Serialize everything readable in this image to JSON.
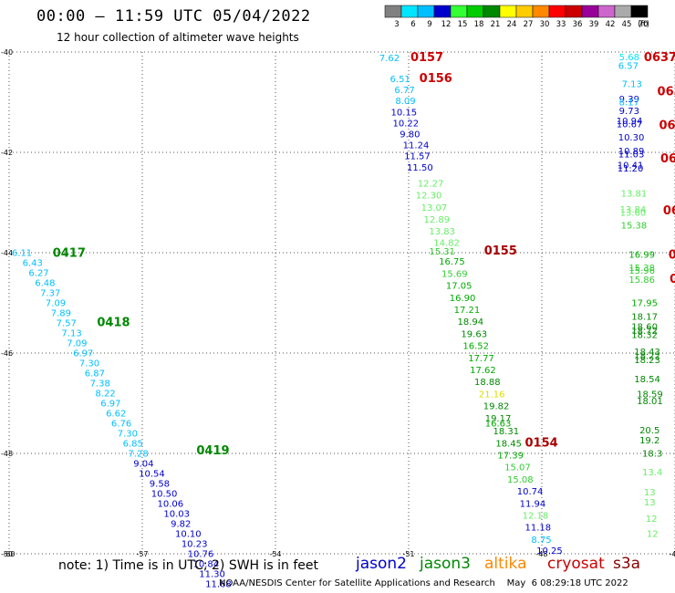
{
  "title": "00:00 – 11:59 UTC 05/04/2022",
  "subtitle": "12 hour collection of altimeter wave heights",
  "note": "note:  1) Time is in UTC;  2) SWH is in feet",
  "credit": "NOAA/NESDIS Center for Satellite Applications and Research    May  6 08:29:18 UTC 2022",
  "colorbar": {
    "unit": "(ft)",
    "bins": [
      {
        "label": "3",
        "color": "#808080"
      },
      {
        "label": "6",
        "color": "#00e5ff"
      },
      {
        "label": "9",
        "color": "#00bfff"
      },
      {
        "label": "12",
        "color": "#0000cd"
      },
      {
        "label": "15",
        "color": "#33ff33"
      },
      {
        "label": "18",
        "color": "#00cc00"
      },
      {
        "label": "21",
        "color": "#008800"
      },
      {
        "label": "24",
        "color": "#ffff00"
      },
      {
        "label": "27",
        "color": "#ffcc00"
      },
      {
        "label": "30",
        "color": "#ff8800"
      },
      {
        "label": "33",
        "color": "#ff0000"
      },
      {
        "label": "36",
        "color": "#cc0000"
      },
      {
        "label": "39",
        "color": "#990099"
      },
      {
        "label": "42",
        "color": "#cc66cc"
      },
      {
        "label": "45",
        "color": "#aaaaaa"
      },
      {
        "label": "70",
        "color": "#000000"
      }
    ]
  },
  "satellites": [
    {
      "name": "jason2",
      "color": "#0000cc"
    },
    {
      "name": "jason3",
      "color": "#008800"
    },
    {
      "name": "altika",
      "color": "#ff8800"
    },
    {
      "name": "cryosat",
      "color": "#cc0000"
    },
    {
      "name": "s3a",
      "color": "#880000"
    }
  ],
  "chart_data": {
    "type": "scatter",
    "xlim": [
      -60,
      -45
    ],
    "ylim": [
      -50,
      -40
    ],
    "xticks": [
      "-60",
      "-57",
      "-54",
      "-51",
      "-48",
      "-45"
    ],
    "yticks": [
      "-40",
      "-42",
      "-44",
      "-46",
      "-48",
      "-50"
    ],
    "grid": true,
    "time_labels": [
      {
        "text": "0157",
        "x": -50.96,
        "y": -40.18,
        "color": "#cc0000"
      },
      {
        "text": "0156",
        "x": -50.76,
        "y": -40.6,
        "color": "#cc0000"
      },
      {
        "text": "0155",
        "x": -49.3,
        "y": -44.04,
        "color": "#aa0000"
      },
      {
        "text": "0154",
        "x": -48.38,
        "y": -47.86,
        "color": "#aa0000"
      },
      {
        "text": "0417",
        "x": -59.02,
        "y": -44.08,
        "color": "#008800"
      },
      {
        "text": "0418",
        "x": -58.02,
        "y": -45.46,
        "color": "#008800"
      },
      {
        "text": "0419",
        "x": -55.78,
        "y": -48.02,
        "color": "#008800"
      },
      {
        "text": "0637",
        "x": -45.7,
        "y": -40.18,
        "color": "#cc0000"
      },
      {
        "text": "063",
        "x": -45.4,
        "y": -40.86,
        "color": "#cc0000"
      },
      {
        "text": "063",
        "x": -45.36,
        "y": -41.54,
        "color": "#cc0000"
      },
      {
        "text": "06",
        "x": -45.33,
        "y": -42.2,
        "color": "#cc0000"
      },
      {
        "text": "06",
        "x": -45.27,
        "y": -43.24,
        "color": "#cc0000"
      },
      {
        "text": "0",
        "x": -45.15,
        "y": -44.12,
        "color": "#cc0000"
      },
      {
        "text": "0",
        "x": -45.12,
        "y": -44.6,
        "color": "#cc0000"
      }
    ],
    "series": [
      {
        "satellite": "jason2",
        "points": [
          {
            "x": -51.66,
            "y": -40.18,
            "v": "7.62",
            "c": "#00bfff"
          },
          {
            "x": -51.42,
            "y": -40.6,
            "v": "6.51",
            "c": "#00bfff"
          },
          {
            "x": -51.32,
            "y": -40.82,
            "v": "6.77",
            "c": "#00bfff"
          },
          {
            "x": -51.3,
            "y": -41.04,
            "v": "8.09",
            "c": "#00bfff"
          },
          {
            "x": -51.4,
            "y": -41.26,
            "v": "10.15",
            "c": "#0000cd"
          },
          {
            "x": -51.36,
            "y": -41.48,
            "v": "10.22",
            "c": "#0000cd"
          },
          {
            "x": -51.2,
            "y": -41.7,
            "v": "9.80",
            "c": "#0000cd"
          },
          {
            "x": -51.13,
            "y": -41.92,
            "v": "11.24",
            "c": "#0000cd"
          },
          {
            "x": -51.1,
            "y": -42.14,
            "v": "11.57",
            "c": "#0000cd"
          },
          {
            "x": -51.04,
            "y": -42.36,
            "v": "11.50",
            "c": "#0000cd"
          },
          {
            "x": -50.8,
            "y": -42.68,
            "v": "12.27",
            "c": "#66ee66"
          },
          {
            "x": -50.84,
            "y": -42.92,
            "v": "12.30",
            "c": "#66ee66"
          },
          {
            "x": -50.72,
            "y": -43.16,
            "v": "13.07",
            "c": "#66ee66"
          },
          {
            "x": -50.66,
            "y": -43.4,
            "v": "12.89",
            "c": "#66ee66"
          },
          {
            "x": -50.54,
            "y": -43.64,
            "v": "13.83",
            "c": "#66ee66"
          },
          {
            "x": -50.44,
            "y": -43.86,
            "v": "14.82",
            "c": "#66ee66"
          },
          {
            "x": -50.54,
            "y": -44.04,
            "v": "15.31",
            "c": "#33cc33"
          },
          {
            "x": -50.32,
            "y": -44.24,
            "v": "16.75",
            "c": "#00aa00"
          },
          {
            "x": -50.26,
            "y": -44.48,
            "v": "15.69",
            "c": "#33cc33"
          },
          {
            "x": -50.16,
            "y": -44.72,
            "v": "17.05",
            "c": "#00aa00"
          },
          {
            "x": -50.08,
            "y": -44.96,
            "v": "16.90",
            "c": "#00aa00"
          },
          {
            "x": -49.98,
            "y": -45.2,
            "v": "17.21",
            "c": "#00aa00"
          },
          {
            "x": -49.9,
            "y": -45.44,
            "v": "18.94",
            "c": "#008800"
          },
          {
            "x": -49.82,
            "y": -45.68,
            "v": "19.63",
            "c": "#008800"
          },
          {
            "x": -49.78,
            "y": -45.92,
            "v": "16.52",
            "c": "#00aa00"
          },
          {
            "x": -49.66,
            "y": -46.16,
            "v": "17.77",
            "c": "#00aa00"
          },
          {
            "x": -49.62,
            "y": -46.4,
            "v": "17.62",
            "c": "#00aa00"
          },
          {
            "x": -49.52,
            "y": -46.64,
            "v": "18.88",
            "c": "#008800"
          },
          {
            "x": -49.42,
            "y": -46.88,
            "v": "21.16",
            "c": "#dddd00"
          },
          {
            "x": -49.32,
            "y": -47.12,
            "v": "19.82",
            "c": "#008800"
          },
          {
            "x": -49.28,
            "y": -47.36,
            "v": "19.17",
            "c": "#008800"
          },
          {
            "x": -49.28,
            "y": -47.46,
            "v": "16.63",
            "c": "#00aa00"
          },
          {
            "x": -49.1,
            "y": -47.62,
            "v": "18.31",
            "c": "#008800"
          },
          {
            "x": -49.04,
            "y": -47.86,
            "v": "18.45",
            "c": "#008800"
          },
          {
            "x": -49.0,
            "y": -48.1,
            "v": "17.39",
            "c": "#00aa00"
          },
          {
            "x": -48.84,
            "y": -48.34,
            "v": "15.07",
            "c": "#33cc33"
          },
          {
            "x": -48.78,
            "y": -48.58,
            "v": "15.08",
            "c": "#33cc33"
          },
          {
            "x": -48.56,
            "y": -48.82,
            "v": "10.74",
            "c": "#0000cd"
          },
          {
            "x": -48.5,
            "y": -49.06,
            "v": "11.94",
            "c": "#0000cd"
          },
          {
            "x": -48.44,
            "y": -49.3,
            "v": "12.18",
            "c": "#66ee66"
          },
          {
            "x": -48.38,
            "y": -49.54,
            "v": "11.18",
            "c": "#0000cd"
          },
          {
            "x": -48.24,
            "y": -49.78,
            "v": "8.75",
            "c": "#00bfff"
          },
          {
            "x": -48.12,
            "y": -50.0,
            "v": "10.25",
            "c": "#0000cd"
          }
        ]
      },
      {
        "satellite": "jason3",
        "points": [
          {
            "x": -59.94,
            "y": -44.06,
            "v": "6.11",
            "c": "#00bfff"
          },
          {
            "x": -59.7,
            "y": -44.26,
            "v": "6.43",
            "c": "#00bfff"
          },
          {
            "x": -59.56,
            "y": -44.46,
            "v": "6.27",
            "c": "#00bfff"
          },
          {
            "x": -59.42,
            "y": -44.66,
            "v": "6.48",
            "c": "#00bfff"
          },
          {
            "x": -59.3,
            "y": -44.86,
            "v": "7.37",
            "c": "#00bfff"
          },
          {
            "x": -59.18,
            "y": -45.06,
            "v": "7.09",
            "c": "#00bfff"
          },
          {
            "x": -59.06,
            "y": -45.26,
            "v": "7.89",
            "c": "#00bfff"
          },
          {
            "x": -58.94,
            "y": -45.46,
            "v": "7.57",
            "c": "#00bfff"
          },
          {
            "x": -58.82,
            "y": -45.66,
            "v": "7.13",
            "c": "#00bfff"
          },
          {
            "x": -58.7,
            "y": -45.86,
            "v": "7.09",
            "c": "#00bfff"
          },
          {
            "x": -58.56,
            "y": -46.06,
            "v": "6.97",
            "c": "#00bfff"
          },
          {
            "x": -58.42,
            "y": -46.26,
            "v": "7.30",
            "c": "#00bfff"
          },
          {
            "x": -58.3,
            "y": -46.46,
            "v": "6.87",
            "c": "#00bfff"
          },
          {
            "x": -58.18,
            "y": -46.66,
            "v": "7.38",
            "c": "#00bfff"
          },
          {
            "x": -58.06,
            "y": -46.86,
            "v": "8.22",
            "c": "#00bfff"
          },
          {
            "x": -57.94,
            "y": -47.06,
            "v": "6.97",
            "c": "#00bfff"
          },
          {
            "x": -57.82,
            "y": -47.26,
            "v": "6.62",
            "c": "#00bfff"
          },
          {
            "x": -57.7,
            "y": -47.46,
            "v": "6.76",
            "c": "#00bfff"
          },
          {
            "x": -57.56,
            "y": -47.66,
            "v": "7.30",
            "c": "#00bfff"
          },
          {
            "x": -57.44,
            "y": -47.86,
            "v": "6.85",
            "c": "#00bfff"
          },
          {
            "x": -57.32,
            "y": -48.06,
            "v": "7.28",
            "c": "#00bfff"
          },
          {
            "x": -57.2,
            "y": -48.26,
            "v": "9.04",
            "c": "#0000cd"
          },
          {
            "x": -57.08,
            "y": -48.46,
            "v": "10.54",
            "c": "#0000cd"
          },
          {
            "x": -56.84,
            "y": -48.66,
            "v": "9.58",
            "c": "#0000cd"
          },
          {
            "x": -56.8,
            "y": -48.86,
            "v": "10.50",
            "c": "#0000cd"
          },
          {
            "x": -56.66,
            "y": -49.06,
            "v": "10.06",
            "c": "#0000cd"
          },
          {
            "x": -56.52,
            "y": -49.26,
            "v": "10.03",
            "c": "#0000cd"
          },
          {
            "x": -56.36,
            "y": -49.46,
            "v": "9.82",
            "c": "#0000cd"
          },
          {
            "x": -56.26,
            "y": -49.66,
            "v": "10.10",
            "c": "#0000cd"
          },
          {
            "x": -56.12,
            "y": -49.86,
            "v": "10.23",
            "c": "#0000cd"
          },
          {
            "x": -55.98,
            "y": -50.06,
            "v": "10.76",
            "c": "#0000cd"
          },
          {
            "x": -55.86,
            "y": -50.26,
            "v": "10.84",
            "c": "#0000cd"
          },
          {
            "x": -55.72,
            "y": -50.46,
            "v": "11.30",
            "c": "#0000cd"
          },
          {
            "x": -55.58,
            "y": -50.66,
            "v": "11.68",
            "c": "#0000cd"
          }
        ]
      },
      {
        "satellite": "s3a",
        "points": [
          {
            "x": -46.26,
            "y": -40.16,
            "v": "5.68",
            "c": "#00e5ff"
          },
          {
            "x": -46.28,
            "y": -40.34,
            "v": "6.57",
            "c": "#00bfff"
          },
          {
            "x": -46.2,
            "y": -40.7,
            "v": "7.13",
            "c": "#00bfff"
          },
          {
            "x": -46.26,
            "y": -41.0,
            "v": "9.39",
            "c": "#0000cd"
          },
          {
            "x": -46.26,
            "y": -41.06,
            "v": "8.17",
            "c": "#00bfff"
          },
          {
            "x": -46.26,
            "y": -41.24,
            "v": "9.73",
            "c": "#0000cd"
          },
          {
            "x": -46.32,
            "y": -41.44,
            "v": "10.94",
            "c": "#0000cd"
          },
          {
            "x": -46.32,
            "y": -41.5,
            "v": "10.67",
            "c": "#0000cd"
          },
          {
            "x": -46.28,
            "y": -41.76,
            "v": "10.30",
            "c": "#0000cd"
          },
          {
            "x": -46.28,
            "y": -42.04,
            "v": "10.89",
            "c": "#0000cd"
          },
          {
            "x": -46.28,
            "y": -42.1,
            "v": "11.03",
            "c": "#0000cd"
          },
          {
            "x": -46.3,
            "y": -42.32,
            "v": "10.41",
            "c": "#0000cd"
          },
          {
            "x": -46.3,
            "y": -42.38,
            "v": "11.20",
            "c": "#0000cd"
          },
          {
            "x": -46.22,
            "y": -42.88,
            "v": "13.81",
            "c": "#66ee66"
          },
          {
            "x": -46.24,
            "y": -43.2,
            "v": "13.84",
            "c": "#66ee66"
          },
          {
            "x": -46.24,
            "y": -43.26,
            "v": "13.60",
            "c": "#66ee66"
          },
          {
            "x": -46.22,
            "y": -43.52,
            "v": "15.38",
            "c": "#33cc33"
          },
          {
            "x": -46.04,
            "y": -44.1,
            "v": "16.99",
            "c": "#00aa00"
          },
          {
            "x": -46.04,
            "y": -44.36,
            "v": "15.38",
            "c": "#33cc33"
          },
          {
            "x": -46.04,
            "y": -44.42,
            "v": "15.96",
            "c": "#33cc33"
          },
          {
            "x": -46.04,
            "y": -44.6,
            "v": "15.86",
            "c": "#33cc33"
          },
          {
            "x": -45.98,
            "y": -45.06,
            "v": "17.95",
            "c": "#00aa00"
          },
          {
            "x": -45.98,
            "y": -45.34,
            "v": "18.17",
            "c": "#008800"
          },
          {
            "x": -45.98,
            "y": -45.54,
            "v": "18.60",
            "c": "#008800"
          },
          {
            "x": -45.98,
            "y": -45.62,
            "v": "18.72",
            "c": "#008800"
          },
          {
            "x": -45.98,
            "y": -45.7,
            "v": "18.32",
            "c": "#008800"
          },
          {
            "x": -45.92,
            "y": -46.04,
            "v": "18.43",
            "c": "#008800"
          },
          {
            "x": -45.92,
            "y": -46.12,
            "v": "18.22",
            "c": "#008800"
          },
          {
            "x": -45.92,
            "y": -46.2,
            "v": "18.23",
            "c": "#008800"
          },
          {
            "x": -45.92,
            "y": -46.58,
            "v": "18.54",
            "c": "#008800"
          },
          {
            "x": -45.86,
            "y": -46.88,
            "v": "18.59",
            "c": "#008800"
          },
          {
            "x": -45.86,
            "y": -47.02,
            "v": "18.01",
            "c": "#008800"
          },
          {
            "x": -45.8,
            "y": -47.6,
            "v": "20.5",
            "c": "#008800"
          },
          {
            "x": -45.8,
            "y": -47.8,
            "v": "19.2",
            "c": "#008800"
          },
          {
            "x": -45.74,
            "y": -48.06,
            "v": "18.3",
            "c": "#008800"
          },
          {
            "x": -45.74,
            "y": -48.44,
            "v": "13.4",
            "c": "#66ee66"
          },
          {
            "x": -45.7,
            "y": -48.84,
            "v": "13",
            "c": "#66ee66"
          },
          {
            "x": -45.7,
            "y": -49.04,
            "v": "13",
            "c": "#66ee66"
          },
          {
            "x": -45.66,
            "y": -49.36,
            "v": "12",
            "c": "#66ee66"
          },
          {
            "x": -45.64,
            "y": -49.66,
            "v": "12",
            "c": "#66ee66"
          }
        ]
      }
    ]
  }
}
